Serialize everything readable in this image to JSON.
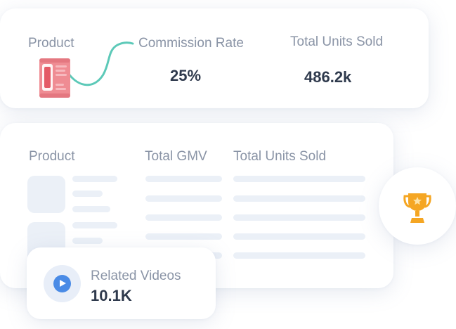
{
  "top_card": {
    "product_label": "Product",
    "commission_label": "Commission Rate",
    "commission_value": "25%",
    "units_label": "Total Units Sold",
    "units_value": "486.2k",
    "product_image": "product-can-image",
    "accent_color": "#5cc9b8"
  },
  "table_card": {
    "columns": [
      "Product",
      "Total GMV",
      "Total Units Sold"
    ],
    "placeholder_color": "#ebf0f7"
  },
  "videos_card": {
    "label": "Related Videos",
    "value": "10.1K",
    "icon": "play-icon",
    "icon_color": "#4a8be6"
  },
  "trophy_badge": {
    "icon": "trophy-icon",
    "color": "#f5a623"
  }
}
